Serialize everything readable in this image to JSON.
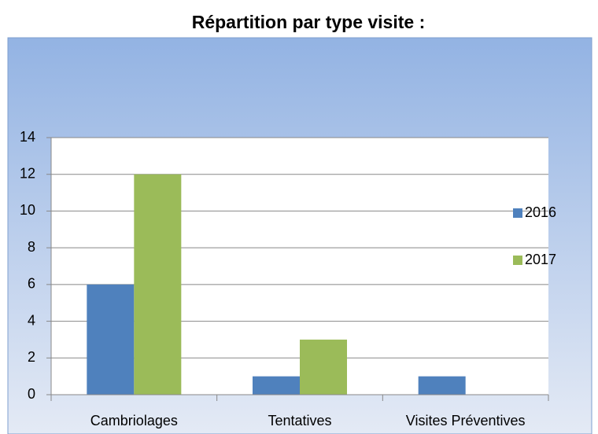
{
  "chart_data": {
    "type": "bar",
    "title": "Répartition par type visite :",
    "categories": [
      "Cambriolages",
      "Tentatives",
      "Visites Préventives"
    ],
    "series": [
      {
        "name": "2016",
        "color": "#4f81bd",
        "values": [
          6,
          1,
          1
        ]
      },
      {
        "name": "2017",
        "color": "#9bbb59",
        "values": [
          12,
          3,
          0
        ]
      }
    ],
    "ylim": [
      0,
      14
    ],
    "yticks": [
      0,
      2,
      4,
      6,
      8,
      10,
      12,
      14
    ],
    "grid": true,
    "legend": "right"
  }
}
